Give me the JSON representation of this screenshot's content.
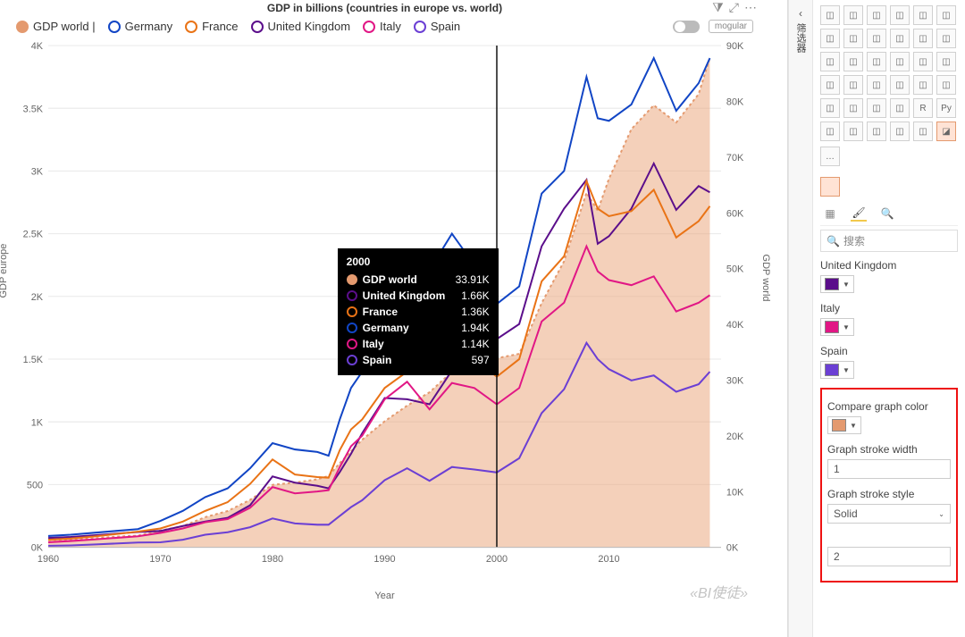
{
  "chart": {
    "title": "GDP in billions (countries in europe vs. world)",
    "x_label": "Year",
    "y_label_left": "GDP europe",
    "y_label_right": "GDP world",
    "xlim": [
      1960,
      2020
    ],
    "ylim_left": [
      0,
      4000
    ],
    "ylim_right": [
      0,
      90000
    ],
    "x_ticks": [
      1960,
      1970,
      1980,
      1990,
      2000,
      2010
    ],
    "y_ticks_left": [
      "0K",
      "500",
      "1K",
      "1.5K",
      "2K",
      "2.5K",
      "3K",
      "3.5K",
      "4K"
    ],
    "y_ticks_left_vals": [
      0,
      500,
      1000,
      1500,
      2000,
      2500,
      3000,
      3500,
      4000
    ],
    "y_ticks_right": [
      "0K",
      "10K",
      "20K",
      "30K",
      "40K",
      "50K",
      "60K",
      "70K",
      "80K",
      "90K"
    ],
    "y_ticks_right_vals": [
      0,
      10000,
      20000,
      30000,
      40000,
      50000,
      60000,
      70000,
      80000,
      90000
    ],
    "colors": {
      "gdp_world": "#e49a6f",
      "gdp_world_fill": "rgba(235,170,130,0.55)",
      "germany": "#1145c5",
      "france": "#e97316",
      "uk": "#5b0e8b",
      "italy": "#e11785",
      "spain": "#6b3fd4",
      "grid": "#e8e8e8",
      "axis": "#bbbbbb",
      "guide_line": "#111111",
      "tooltip_bg": "#000000"
    },
    "legend": [
      {
        "label": "GDP world |",
        "color": "#e49a6f",
        "filled": true
      },
      {
        "label": "Germany",
        "color": "#1145c5",
        "filled": false
      },
      {
        "label": "France",
        "color": "#e97316",
        "filled": false
      },
      {
        "label": "United Kingdom",
        "color": "#5b0e8b",
        "filled": false
      },
      {
        "label": "Italy",
        "color": "#e11785",
        "filled": false
      },
      {
        "label": "Spain",
        "color": "#6b3fd4",
        "filled": false
      }
    ],
    "series": {
      "years": [
        1960,
        1962,
        1964,
        1966,
        1968,
        1970,
        1972,
        1974,
        1976,
        1978,
        1980,
        1982,
        1984,
        1985,
        1986,
        1987,
        1988,
        1990,
        1992,
        1994,
        1996,
        1998,
        2000,
        2002,
        2004,
        2006,
        2008,
        2009,
        2010,
        2012,
        2014,
        2016,
        2018,
        2019
      ],
      "gdp_world": [
        1300,
        1400,
        1600,
        1900,
        2100,
        3000,
        3800,
        5400,
        6500,
        8500,
        11200,
        11600,
        12200,
        12800,
        15100,
        17200,
        19300,
        22600,
        25400,
        27800,
        31500,
        31400,
        33910,
        34700,
        43800,
        51300,
        63600,
        60400,
        66100,
        75000,
        79300,
        76200,
        81300,
        87800
      ],
      "germany": [
        90,
        100,
        115,
        130,
        145,
        210,
        290,
        400,
        470,
        630,
        830,
        780,
        760,
        730,
        1020,
        1270,
        1400,
        1770,
        2120,
        2210,
        2500,
        2250,
        1940,
        2080,
        2820,
        3000,
        3750,
        3420,
        3400,
        3530,
        3900,
        3480,
        3700,
        3900
      ],
      "france": [
        60,
        70,
        85,
        105,
        125,
        150,
        205,
        290,
        360,
        505,
        700,
        580,
        560,
        555,
        775,
        940,
        1020,
        1270,
        1400,
        1400,
        1600,
        1500,
        1360,
        1500,
        2120,
        2320,
        2920,
        2700,
        2640,
        2680,
        2850,
        2470,
        2600,
        2720
      ],
      "uk": [
        74,
        82,
        95,
        108,
        122,
        130,
        170,
        205,
        235,
        335,
        565,
        515,
        490,
        470,
        600,
        745,
        910,
        1190,
        1180,
        1140,
        1410,
        1560,
        1660,
        1780,
        2400,
        2700,
        2930,
        2420,
        2480,
        2700,
        3060,
        2690,
        2880,
        2830
      ],
      "italy": [
        40,
        50,
        62,
        75,
        88,
        115,
        150,
        200,
        225,
        315,
        480,
        430,
        445,
        455,
        640,
        805,
        890,
        1180,
        1320,
        1100,
        1310,
        1270,
        1140,
        1270,
        1800,
        1950,
        2400,
        2200,
        2130,
        2090,
        2160,
        1880,
        1950,
        2010
      ],
      "spain": [
        12,
        15,
        22,
        30,
        38,
        40,
        60,
        100,
        120,
        160,
        230,
        190,
        180,
        180,
        250,
        320,
        375,
        535,
        630,
        530,
        640,
        620,
        597,
        710,
        1070,
        1260,
        1630,
        1500,
        1420,
        1330,
        1370,
        1240,
        1300,
        1400
      ]
    },
    "guide_year": 2000,
    "pill": "mogular",
    "toolbar_icons": [
      "filter-icon",
      "focus-icon",
      "more-icon"
    ],
    "line_width": 2,
    "area_dash": "3,3"
  },
  "tooltip": {
    "title": "2000",
    "rows": [
      {
        "label": "GDP world",
        "value": "33.91K",
        "color": "#e49a6f",
        "filled": true
      },
      {
        "label": "United Kingdom",
        "value": "1.66K",
        "color": "#5b0e8b",
        "filled": false
      },
      {
        "label": "France",
        "value": "1.36K",
        "color": "#e97316",
        "filled": false
      },
      {
        "label": "Germany",
        "value": "1.94K",
        "color": "#1145c5",
        "filled": false
      },
      {
        "label": "Italy",
        "value": "1.14K",
        "color": "#e11785",
        "filled": false
      },
      {
        "label": "Spain",
        "value": "597",
        "color": "#6b3fd4",
        "filled": false
      }
    ]
  },
  "collapsed_pane": {
    "chevron": "‹",
    "label": "筛选器"
  },
  "viz_pane": {
    "icons": [
      "stacked-bar",
      "clustered-bar",
      "stacked-bar-100",
      "stacked-column",
      "clustered-column",
      "stacked-column-100",
      "line",
      "area",
      "stacked-area",
      "line-stacked-column",
      "line-clustered-column",
      "ribbon",
      "waterfall",
      "funnel",
      "scatter",
      "pie",
      "donut",
      "treemap",
      "map",
      "filled-map",
      "arc",
      "gauge",
      "card",
      "multi-row-card",
      "kpi",
      "slicer",
      "table",
      "matrix",
      "r-visual",
      "py-visual",
      "key-influencers",
      "decomposition-tree",
      "qna",
      "paginated",
      "power-apps",
      "custom-visual",
      "more"
    ],
    "more_label": "…",
    "selected_icon": "custom-visual",
    "tabs": [
      "fields-tab",
      "format-tab",
      "analytics-tab"
    ],
    "active_tab": "format-tab",
    "search_placeholder": "搜索",
    "sections": [
      {
        "label": "United Kingdom",
        "color": "#5b0e8b"
      },
      {
        "label": "Italy",
        "color": "#e11785"
      },
      {
        "label": "Spain",
        "color": "#6b3fd4"
      }
    ],
    "highlight": {
      "compare_color_label": "Compare graph color",
      "compare_color": "#e49a6f",
      "stroke_width_label": "Graph stroke width",
      "stroke_width": "1",
      "stroke_style_label": "Graph stroke style",
      "stroke_style": "Solid",
      "extra_label": "",
      "extra_value": "2"
    }
  },
  "watermark": "«BI使徒»"
}
